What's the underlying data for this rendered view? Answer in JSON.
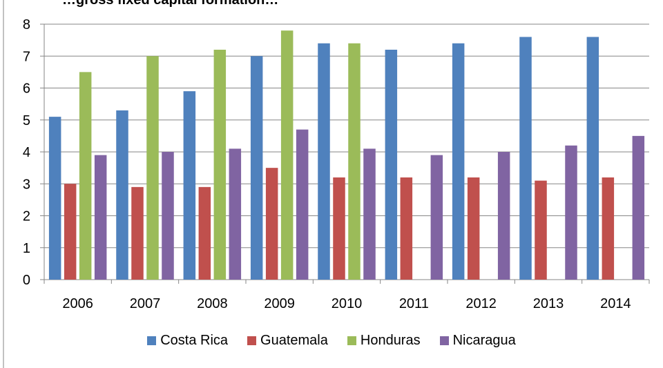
{
  "chart_data": {
    "type": "bar",
    "title": "…gross fixed capital formation…",
    "categories": [
      "2006",
      "2007",
      "2008",
      "2009",
      "2010",
      "2011",
      "2012",
      "2013",
      "2014"
    ],
    "series": [
      {
        "name": "Costa Rica",
        "color": "#4F81BD",
        "values": [
          5.1,
          5.3,
          5.9,
          7.0,
          7.4,
          7.2,
          7.4,
          7.6,
          7.6
        ]
      },
      {
        "name": "Guatemala",
        "color": "#C0504D",
        "values": [
          3.0,
          2.9,
          2.9,
          3.5,
          3.2,
          3.2,
          3.2,
          3.1,
          3.2
        ]
      },
      {
        "name": "Honduras",
        "color": "#9BBB59",
        "values": [
          6.5,
          7.0,
          7.2,
          7.8,
          7.4,
          null,
          null,
          null,
          null
        ]
      },
      {
        "name": "Nicaragua",
        "color": "#8064A2",
        "values": [
          3.9,
          4.0,
          4.1,
          4.7,
          4.1,
          3.9,
          4.0,
          4.2,
          4.5
        ]
      }
    ],
    "yticks": [
      0,
      1,
      2,
      3,
      4,
      5,
      6,
      7,
      8
    ],
    "ylim": [
      0,
      8
    ],
    "xlabel": "",
    "ylabel": "",
    "grid": true,
    "legend_position": "bottom"
  }
}
